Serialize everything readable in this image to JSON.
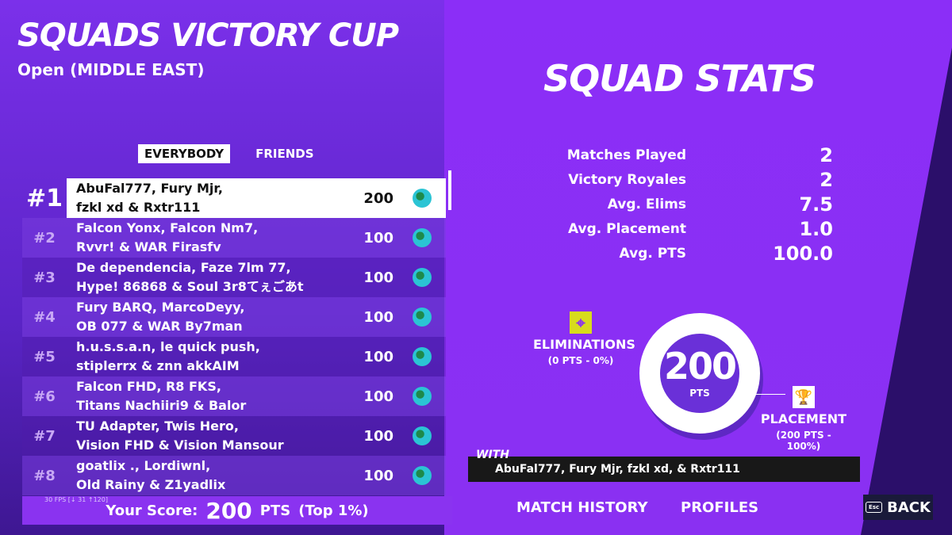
{
  "header": {
    "title": "SQUADS VICTORY CUP",
    "subtitle": "Open (MIDDLE EAST)"
  },
  "tabs": [
    {
      "label": "EVERYBODY",
      "active": true
    },
    {
      "label": "FRIENDS",
      "active": false
    }
  ],
  "leaderboard": [
    {
      "rank": "#1",
      "line1": "AbuFal777, Fury Mjr,",
      "line2": "fzkl xd & Rxtr111",
      "score": "200",
      "icon": "globe-icon"
    },
    {
      "rank": "#2",
      "line1": "Falcon Yonx, Falcon Nm7,",
      "line2": "Rvvr! & WAR Firasfv",
      "score": "100",
      "icon": "globe-icon"
    },
    {
      "rank": "#3",
      "line1": "De dependencia, Faze 7lm 77,",
      "line2": "Hype! 86868 & Soul 3r8てぇごあt",
      "score": "100",
      "icon": "globe-icon"
    },
    {
      "rank": "#4",
      "line1": "Fury BARQ, MarcoDeyy,",
      "line2": "OB 077 & WAR By7man",
      "score": "100",
      "icon": "globe-icon"
    },
    {
      "rank": "#5",
      "line1": "h.u.s.s.a.n, le quick push,",
      "line2": "stiplerrx & znn akkAIM",
      "score": "100",
      "icon": "globe-icon"
    },
    {
      "rank": "#6",
      "line1": "Falcon FHD, R8 FKS,",
      "line2": "Titans Nachiiri9 & Balor",
      "score": "100",
      "icon": "globe-icon"
    },
    {
      "rank": "#7",
      "line1": "TU Adapter, Twis Hero,",
      "line2": "Vision FHD & Vision Mansour",
      "score": "100",
      "icon": "globe-icon"
    },
    {
      "rank": "#8",
      "line1": "goatlix ., Lordiwnl,",
      "line2": "Old Rainy & Z1yadlix",
      "score": "100",
      "icon": "globe-icon"
    }
  ],
  "your_score": {
    "label": "Your Score:",
    "value": "200",
    "unit": "PTS",
    "rank": "(Top 1%)"
  },
  "fps": "30 FPS [↓ 31 ↑120]",
  "stats": {
    "title": "SQUAD STATS",
    "rows": [
      {
        "label": "Matches Played",
        "value": "2"
      },
      {
        "label": "Victory Royales",
        "value": "2"
      },
      {
        "label": "Avg. Elims",
        "value": "7.5"
      },
      {
        "label": "Avg. Placement",
        "value": "1.0"
      },
      {
        "label": "Avg. PTS",
        "value": "100.0"
      }
    ]
  },
  "points": {
    "total": "200",
    "unit": "PTS",
    "eliminations": {
      "label": "ELIMINATIONS",
      "detail": "(0 PTS - 0%)"
    },
    "placement": {
      "label": "PLACEMENT",
      "detail": "(200 PTS - 100%)"
    }
  },
  "with": {
    "label": "WITH",
    "names": "AbuFal777, Fury Mjr, fzkl xd, & Rxtr111"
  },
  "nav": {
    "match_history": "MATCH HISTORY",
    "profiles": "PROFILES",
    "back": "BACK",
    "esc": "Esc"
  },
  "colors": {
    "accent": "#8a2ef7",
    "elim_icon": "#d7dc1c"
  }
}
